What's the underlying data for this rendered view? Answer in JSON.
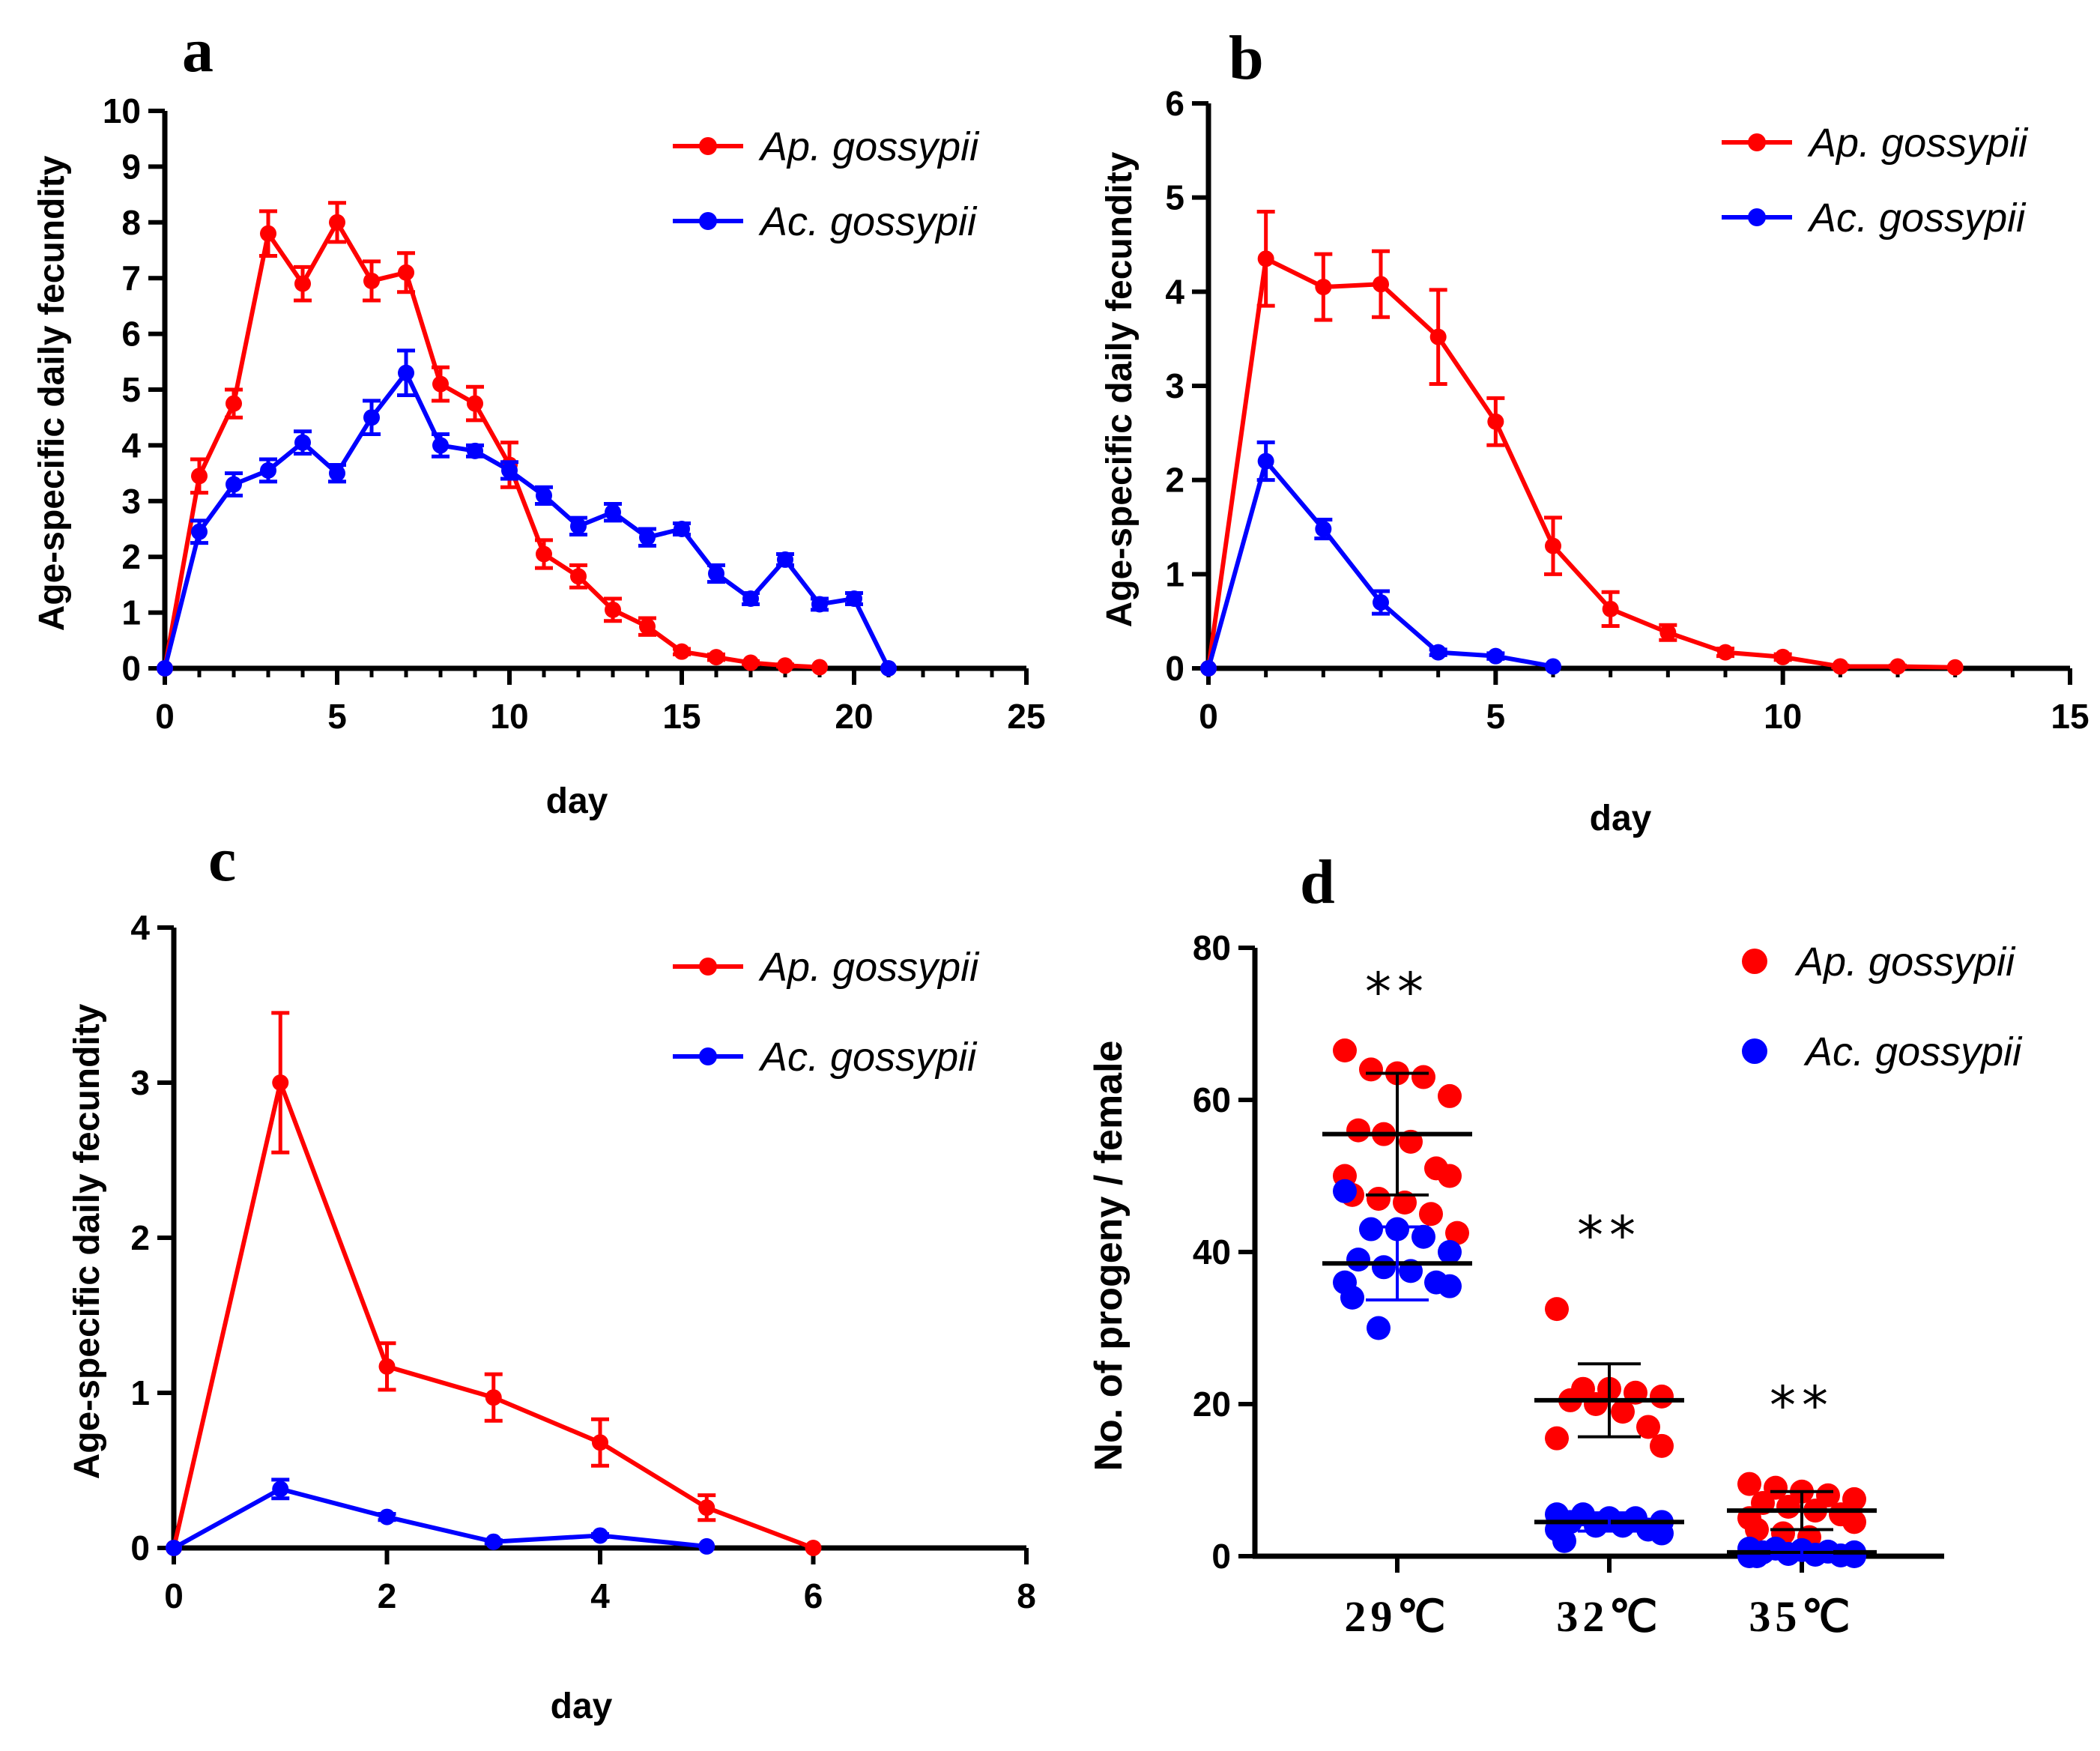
{
  "colors": {
    "ap": "#ff0000",
    "ac": "#0000ff",
    "axis": "#000000"
  },
  "chart_data": [
    {
      "panel": "a",
      "type": "line",
      "xlabel": "day",
      "ylabel": "Age-specific daily fecundity",
      "xlim": [
        0,
        25
      ],
      "ylim": [
        0,
        10
      ],
      "xticks": [
        0,
        5,
        10,
        15,
        20,
        25
      ],
      "xtick_labels": [
        "0",
        "5",
        "10",
        "15",
        "20",
        "25"
      ],
      "yticks": [
        0,
        1,
        2,
        3,
        4,
        5,
        6,
        7,
        8,
        9,
        10
      ],
      "ytick_labels": [
        "0",
        "1",
        "2",
        "3",
        "4",
        "5",
        "6",
        "7",
        "8",
        "9",
        "10"
      ],
      "legend": "top-right",
      "series": [
        {
          "name": "Ap. gossypii",
          "color": "#ff0000",
          "x": [
            0,
            1,
            2,
            3,
            4,
            5,
            6,
            7,
            8,
            9,
            10,
            11,
            12,
            13,
            14,
            15,
            16,
            17,
            18,
            19
          ],
          "y": [
            0,
            3.45,
            4.75,
            7.8,
            6.9,
            8.0,
            6.95,
            7.1,
            5.1,
            4.75,
            3.65,
            2.05,
            1.65,
            1.05,
            0.75,
            0.3,
            0.2,
            0.1,
            0.05,
            0.02
          ],
          "err": [
            0,
            0.3,
            0.25,
            0.4,
            0.3,
            0.35,
            0.35,
            0.35,
            0.3,
            0.3,
            0.4,
            0.25,
            0.2,
            0.2,
            0.15,
            0.05,
            0.05,
            0.03,
            0.02,
            0
          ]
        },
        {
          "name": "Ac. gossypii",
          "color": "#0000ff",
          "x": [
            0,
            1,
            2,
            3,
            4,
            5,
            6,
            7,
            8,
            9,
            10,
            11,
            12,
            13,
            14,
            15,
            16,
            17,
            18,
            19,
            20,
            21
          ],
          "y": [
            0,
            2.45,
            3.3,
            3.55,
            4.05,
            3.5,
            4.5,
            5.3,
            4.0,
            3.9,
            3.55,
            3.1,
            2.55,
            2.8,
            2.35,
            2.5,
            1.7,
            1.25,
            1.95,
            1.15,
            1.25,
            0
          ],
          "err": [
            0,
            0.2,
            0.2,
            0.2,
            0.2,
            0.15,
            0.3,
            0.4,
            0.2,
            0.1,
            0.15,
            0.15,
            0.15,
            0.15,
            0.15,
            0.1,
            0.15,
            0.1,
            0.1,
            0.1,
            0.1,
            0
          ]
        }
      ]
    },
    {
      "panel": "b",
      "type": "line",
      "xlabel": "day",
      "ylabel": "Age-specific daily fecundity",
      "xlim": [
        0,
        15
      ],
      "ylim": [
        0,
        6
      ],
      "xticks": [
        0,
        5,
        10,
        15
      ],
      "xtick_labels": [
        "0",
        "5",
        "10",
        "15"
      ],
      "yticks": [
        0,
        1,
        2,
        3,
        4,
        5,
        6
      ],
      "ytick_labels": [
        "0",
        "1",
        "2",
        "3",
        "4",
        "5",
        "6"
      ],
      "legend": "top-right",
      "series": [
        {
          "name": "Ap. gossypii",
          "color": "#ff0000",
          "x": [
            0,
            1,
            2,
            3,
            4,
            5,
            6,
            7,
            8,
            9,
            10,
            11,
            12,
            13
          ],
          "y": [
            0,
            4.35,
            4.05,
            4.08,
            3.52,
            2.62,
            1.3,
            0.63,
            0.38,
            0.17,
            0.12,
            0.02,
            0.02,
            0.01
          ],
          "err": [
            0,
            0.5,
            0.35,
            0.35,
            0.5,
            0.25,
            0.3,
            0.18,
            0.08,
            0.04,
            0.03,
            0.01,
            0.01,
            0
          ]
        },
        {
          "name": "Ac. gossypii",
          "color": "#0000ff",
          "x": [
            0,
            1,
            2,
            3,
            4,
            5,
            6
          ],
          "y": [
            0,
            2.2,
            1.48,
            0.7,
            0.17,
            0.13,
            0.02
          ],
          "err": [
            0,
            0.2,
            0.1,
            0.12,
            0.03,
            0.03,
            0
          ]
        }
      ]
    },
    {
      "panel": "c",
      "type": "line",
      "xlabel": "day",
      "ylabel": "Age-specific daily fecundity",
      "xlim": [
        0,
        8
      ],
      "ylim": [
        0,
        4
      ],
      "xticks": [
        0,
        2,
        4,
        6,
        8
      ],
      "xtick_labels": [
        "0",
        "2",
        "4",
        "6",
        "8"
      ],
      "yticks": [
        0,
        1,
        2,
        3,
        4
      ],
      "ytick_labels": [
        "0",
        "1",
        "2",
        "3",
        "4"
      ],
      "legend": "top-right",
      "series": [
        {
          "name": "Ap. gossypii",
          "color": "#ff0000",
          "x": [
            0,
            1,
            2,
            3,
            4,
            5,
            6
          ],
          "y": [
            0,
            3.0,
            1.17,
            0.97,
            0.68,
            0.26,
            0
          ],
          "err": [
            0,
            0.45,
            0.15,
            0.15,
            0.15,
            0.08,
            0
          ]
        },
        {
          "name": "Ac. gossypii",
          "color": "#0000ff",
          "x": [
            0,
            1,
            2,
            3,
            4,
            5
          ],
          "y": [
            0,
            0.38,
            0.2,
            0.04,
            0.08,
            0.01
          ],
          "err": [
            0,
            0.06,
            0.02,
            0.01,
            0.01,
            0
          ]
        }
      ]
    },
    {
      "panel": "d",
      "type": "scatter",
      "ylabel": "No. of progeny / female",
      "ylim": [
        0,
        80
      ],
      "yticks": [
        0,
        20,
        40,
        60,
        80
      ],
      "ytick_labels": [
        "0",
        "20",
        "40",
        "60",
        "80"
      ],
      "categories": [
        "29℃",
        "32℃",
        "35℃"
      ],
      "significance": [
        "**",
        "**",
        "**"
      ],
      "legend": "top-right",
      "series": [
        {
          "name": "Ap. gossypii",
          "color": "#ff0000",
          "mean": [
            55.5,
            20.5,
            6.0
          ],
          "sd": [
            8.0,
            4.8,
            2.5
          ],
          "points": [
            [
              66.5,
              64,
              63.5,
              63,
              60.5,
              56,
              55.5,
              54.5,
              51,
              50,
              50,
              47.5,
              47,
              46.5,
              45,
              42.5
            ],
            [
              32.5,
              22,
              22,
              21.5,
              21,
              20.5,
              20,
              19,
              17,
              15.5,
              14.5
            ],
            [
              9.5,
              9,
              8.5,
              8,
              7.5,
              7,
              6.5,
              6,
              5.5,
              5,
              4.5,
              3.5,
              3,
              2.5
            ]
          ]
        },
        {
          "name": "Ac. gossypii",
          "color": "#0000ff",
          "mean": [
            38.5,
            4.5,
            0.5
          ],
          "sd": [
            4.8,
            1.2,
            0.4
          ],
          "points": [
            [
              48,
              43,
              43,
              42,
              40,
              39,
              38,
              37.5,
              36,
              36,
              35.5,
              34,
              30
            ],
            [
              5.5,
              5.5,
              5,
              5,
              4.5,
              4.5,
              4,
              4,
              3.5,
              3.5,
              3,
              2
            ],
            [
              1,
              1,
              0.8,
              0.6,
              0.5,
              0.5,
              0.3,
              0.2,
              0.1,
              0,
              0,
              0
            ]
          ]
        }
      ]
    }
  ]
}
